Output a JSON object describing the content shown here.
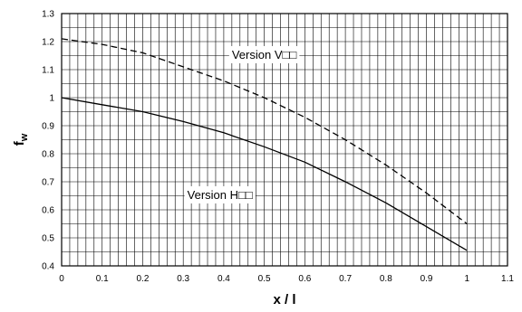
{
  "chart_data": {
    "type": "line",
    "xlabel": "x / l",
    "ylabel": "f",
    "ylabel_subscript": "w",
    "xlim": [
      0,
      1.1
    ],
    "ylim": [
      0.4,
      1.3
    ],
    "x_ticks": [
      "0",
      "0.1",
      "0.2",
      "0.3",
      "0.4",
      "0.5",
      "0.6",
      "0.7",
      "0.8",
      "0.9",
      "1",
      "1.1"
    ],
    "y_ticks": [
      "0.4",
      "0.5",
      "0.6",
      "0.7",
      "0.8",
      "0.9",
      "1",
      "1.1",
      "1.2",
      "1.3"
    ],
    "grid": true,
    "series": [
      {
        "name": "Version V□□",
        "style": "dashed",
        "x": [
          0,
          0.1,
          0.2,
          0.3,
          0.4,
          0.5,
          0.6,
          0.7,
          0.8,
          0.9,
          1.0
        ],
        "values": [
          1.21,
          1.19,
          1.16,
          1.11,
          1.06,
          1.0,
          0.93,
          0.85,
          0.76,
          0.66,
          0.55
        ]
      },
      {
        "name": "Version H□□",
        "style": "solid",
        "x": [
          0,
          0.1,
          0.2,
          0.3,
          0.4,
          0.5,
          0.6,
          0.7,
          0.8,
          0.9,
          1.0
        ],
        "values": [
          1.0,
          0.975,
          0.95,
          0.915,
          0.875,
          0.825,
          0.77,
          0.7,
          0.625,
          0.54,
          0.455
        ]
      }
    ],
    "annotations": [
      {
        "text": "Version V□□",
        "series": 0,
        "x": 0.42,
        "y": 1.155
      },
      {
        "text": "Version H□□",
        "series": 1,
        "x": 0.31,
        "y": 0.655
      }
    ]
  }
}
